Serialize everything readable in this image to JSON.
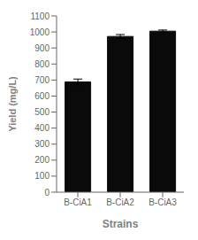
{
  "chart_data": {
    "type": "bar",
    "categories": [
      "B-CiA1",
      "B-CiA2",
      "B-CiA3"
    ],
    "values": [
      688,
      972,
      1005
    ],
    "errors": [
      18,
      12,
      7
    ],
    "color": "#0a0a0a",
    "ylim": [
      0,
      1100
    ],
    "yticks": [
      0,
      100,
      200,
      300,
      400,
      500,
      600,
      700,
      800,
      900,
      1000,
      1100
    ],
    "ylabel": "Yield (mg/L)",
    "xlabel": "Strains"
  }
}
